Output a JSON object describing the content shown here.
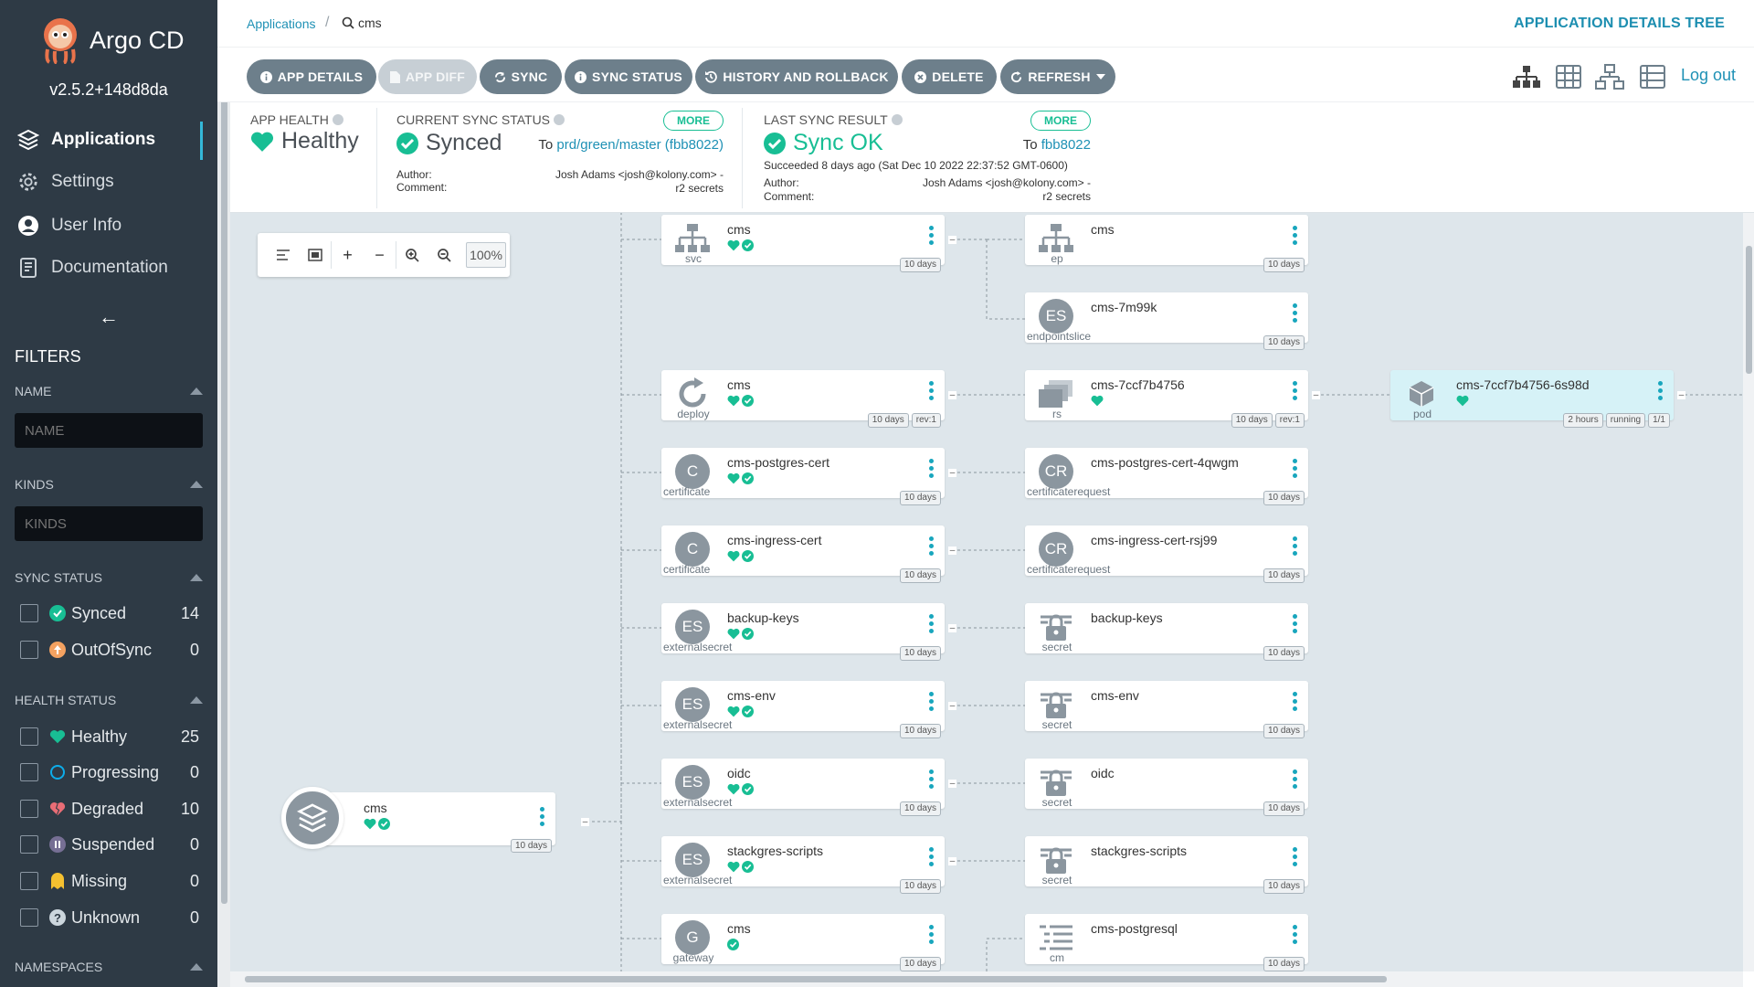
{
  "app": {
    "name": "Argo CD",
    "version": "v2.5.2+148d8da"
  },
  "nav": [
    {
      "label": "Applications",
      "icon": "layers-icon"
    },
    {
      "label": "Settings",
      "icon": "gear-icon"
    },
    {
      "label": "User Info",
      "icon": "user-icon"
    },
    {
      "label": "Documentation",
      "icon": "book-icon"
    }
  ],
  "filters": {
    "title": "FILTERS",
    "name_label": "NAME",
    "name_placeholder": "NAME",
    "kinds_label": "KINDS",
    "kinds_placeholder": "KINDS",
    "sync_label": "SYNC STATUS",
    "sync": [
      {
        "label": "Synced",
        "count": "14"
      },
      {
        "label": "OutOfSync",
        "count": "0"
      }
    ],
    "health_label": "HEALTH STATUS",
    "health": [
      {
        "label": "Healthy",
        "count": "25"
      },
      {
        "label": "Progressing",
        "count": "0"
      },
      {
        "label": "Degraded",
        "count": "10"
      },
      {
        "label": "Suspended",
        "count": "0"
      },
      {
        "label": "Missing",
        "count": "0"
      },
      {
        "label": "Unknown",
        "count": "0"
      }
    ],
    "namespaces_label": "NAMESPACES"
  },
  "breadcrumb": {
    "root": "Applications",
    "current": "cms"
  },
  "page_title": "APPLICATION DETAILS TREE",
  "toolbar": {
    "app_details": "APP DETAILS",
    "app_diff": "APP DIFF",
    "sync": "SYNC",
    "sync_status": "SYNC STATUS",
    "history": "HISTORY AND ROLLBACK",
    "delete": "DELETE",
    "refresh": "REFRESH",
    "logout": "Log out"
  },
  "status": {
    "health_label": "APP HEALTH",
    "health_value": "Healthy",
    "sync_label": "CURRENT SYNC STATUS",
    "sync_value": "Synced",
    "sync_to_prefix": "To",
    "sync_to_ref": "prd/green/master (fbb8022)",
    "more": "MORE",
    "author_label": "Author:",
    "comment_label": "Comment:",
    "author_value": "Josh Adams <josh@kolony.com> -",
    "comment_value": "r2 secrets",
    "last_label": "LAST SYNC RESULT",
    "last_value": "Sync OK",
    "last_to_ref": "fbb8022",
    "succeeded": "Succeeded 8 days ago (Sat Dec 10 2022 22:37:52 GMT-0600)"
  },
  "zoom": {
    "percent": "100%"
  },
  "root": {
    "name": "cms",
    "age": "10 days"
  },
  "nodes_col1": [
    {
      "name": "cms",
      "kind": "svc",
      "age": "10 days",
      "heart": true,
      "check": true
    },
    {
      "name": "cms",
      "kind": "deploy",
      "age": "10 days",
      "rev": "rev:1",
      "heart": true,
      "check": true
    },
    {
      "name": "cms-postgres-cert",
      "kind": "certificate",
      "age": "10 days",
      "heart": true,
      "check": true,
      "letter": "C"
    },
    {
      "name": "cms-ingress-cert",
      "kind": "certificate",
      "age": "10 days",
      "heart": true,
      "check": true,
      "letter": "C"
    },
    {
      "name": "backup-keys",
      "kind": "externalsecret",
      "age": "10 days",
      "heart": true,
      "check": true,
      "letter": "ES"
    },
    {
      "name": "cms-env",
      "kind": "externalsecret",
      "age": "10 days",
      "heart": true,
      "check": true,
      "letter": "ES"
    },
    {
      "name": "oidc",
      "kind": "externalsecret",
      "age": "10 days",
      "heart": true,
      "check": true,
      "letter": "ES"
    },
    {
      "name": "stackgres-scripts",
      "kind": "externalsecret",
      "age": "10 days",
      "heart": true,
      "check": true,
      "letter": "ES"
    },
    {
      "name": "cms",
      "kind": "gateway",
      "age": "10 days",
      "heart": false,
      "check": true,
      "letter": "G"
    }
  ],
  "nodes_col2": [
    {
      "name": "cms",
      "kind": "ep",
      "age": "10 days"
    },
    {
      "name": "cms-7m99k",
      "kind": "endpointslice",
      "age": "10 days",
      "letter": "ES"
    },
    {
      "name": "cms-7ccf7b4756",
      "kind": "rs",
      "age": "10 days",
      "rev": "rev:1",
      "heart": true
    },
    {
      "name": "cms-postgres-cert-4qwgm",
      "kind": "certificaterequest",
      "age": "10 days",
      "letter": "CR"
    },
    {
      "name": "cms-ingress-cert-rsj99",
      "kind": "certificaterequest",
      "age": "10 days",
      "letter": "CR"
    },
    {
      "name": "backup-keys",
      "kind": "secret",
      "age": "10 days"
    },
    {
      "name": "cms-env",
      "kind": "secret",
      "age": "10 days"
    },
    {
      "name": "oidc",
      "kind": "secret",
      "age": "10 days"
    },
    {
      "name": "stackgres-scripts",
      "kind": "secret",
      "age": "10 days"
    },
    {
      "name": "cms-postgresql",
      "kind": "cm",
      "age": "10 days"
    }
  ],
  "pod": {
    "name": "cms-7ccf7b4756-6s98d",
    "kind": "pod",
    "age": "2 hours",
    "state": "running",
    "ready": "1/1"
  },
  "colors": {
    "sidebar": "#2e3a45",
    "accent": "#18be94",
    "link": "#1f91b5",
    "graph_bg": "#dee6eb"
  }
}
